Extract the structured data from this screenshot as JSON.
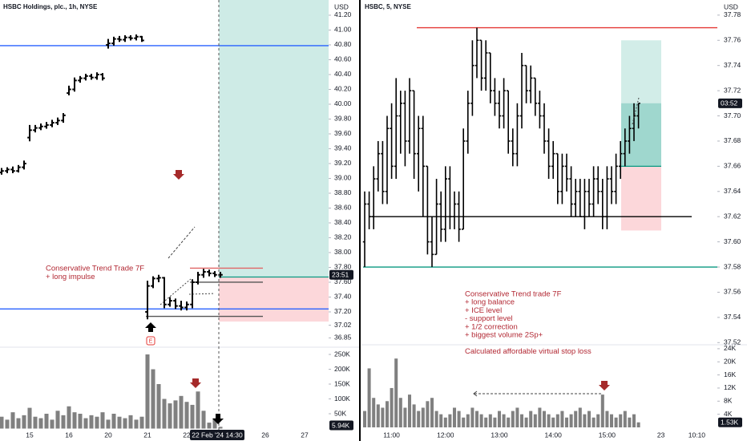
{
  "chart_data": [
    {
      "type": "ohlc",
      "title": "HSBC Holdings, plc., 1h, NYSE",
      "currency": "USD",
      "categories": [
        null,
        null,
        null,
        null,
        null,
        "15",
        null,
        null,
        null,
        null,
        null,
        null,
        "16",
        null,
        null,
        null,
        null,
        null,
        null,
        "20",
        null,
        null,
        null,
        null,
        null,
        null,
        "21",
        null,
        null,
        null,
        null,
        null,
        null,
        "22",
        null,
        null,
        null,
        null,
        null,
        null,
        null,
        null,
        null,
        null,
        null,
        null,
        null,
        "26",
        null,
        null,
        null,
        null,
        null,
        null,
        "27",
        null,
        null,
        null
      ],
      "open": [
        39.08,
        39.1,
        39.12,
        39.1,
        39.15,
        39.55,
        39.65,
        39.68,
        39.7,
        39.72,
        39.75,
        39.78,
        40.15,
        40.2,
        40.32,
        40.35,
        40.38,
        40.36,
        40.4,
        40.8,
        40.82,
        40.88,
        40.87,
        40.9,
        40.89,
        40.91,
        37.2,
        37.55,
        37.65,
        37.66,
        37.3,
        37.35,
        37.28,
        37.26,
        37.3,
        37.6,
        37.7,
        37.74,
        37.72,
        37.7,
        null,
        null,
        null,
        null,
        null,
        null,
        null,
        null,
        null,
        null,
        null,
        null,
        null,
        null,
        null,
        null,
        null,
        null
      ],
      "high": [
        39.14,
        39.15,
        39.16,
        39.18,
        39.24,
        39.72,
        39.72,
        39.74,
        39.76,
        39.79,
        39.82,
        39.88,
        40.25,
        40.36,
        40.38,
        40.41,
        40.41,
        40.43,
        40.42,
        40.88,
        40.91,
        40.92,
        40.93,
        40.93,
        40.94,
        40.92,
        37.62,
        37.68,
        37.7,
        37.67,
        37.4,
        37.38,
        37.35,
        37.34,
        37.64,
        37.74,
        37.78,
        37.77,
        37.75,
        37.74,
        null,
        null,
        null,
        null,
        null,
        null,
        null,
        null,
        null,
        null,
        null,
        null,
        null,
        null,
        null,
        null,
        null,
        null
      ],
      "low": [
        39.05,
        39.07,
        39.07,
        39.08,
        39.12,
        39.5,
        39.62,
        39.65,
        39.67,
        39.69,
        39.72,
        39.75,
        40.12,
        40.17,
        40.29,
        40.32,
        40.33,
        40.33,
        40.32,
        40.75,
        40.79,
        40.84,
        40.84,
        40.86,
        40.86,
        40.84,
        37.1,
        37.52,
        37.6,
        37.25,
        37.27,
        37.24,
        37.22,
        37.22,
        37.25,
        37.57,
        37.66,
        37.68,
        37.67,
        37.66,
        null,
        null,
        null,
        null,
        null,
        null,
        null,
        null,
        null,
        null,
        null,
        null,
        null,
        null,
        null,
        null,
        null,
        null
      ],
      "close": [
        39.1,
        39.12,
        39.1,
        39.15,
        39.2,
        39.65,
        39.68,
        39.7,
        39.72,
        39.75,
        39.78,
        39.85,
        40.2,
        40.32,
        40.35,
        40.38,
        40.36,
        40.4,
        40.35,
        40.82,
        40.88,
        40.87,
        40.9,
        40.89,
        40.91,
        40.86,
        37.55,
        37.65,
        37.66,
        37.3,
        37.35,
        37.28,
        37.26,
        37.3,
        37.6,
        37.7,
        37.74,
        37.72,
        37.7,
        37.7,
        null,
        null,
        null,
        null,
        null,
        null,
        null,
        null,
        null,
        null,
        null,
        null,
        null,
        null,
        null,
        null,
        null,
        null
      ],
      "volume": [
        40000,
        30000,
        55000,
        35000,
        45000,
        70000,
        40000,
        35000,
        50000,
        30000,
        60000,
        45000,
        75000,
        55000,
        50000,
        35000,
        45000,
        40000,
        55000,
        30000,
        50000,
        40000,
        35000,
        45000,
        30000,
        40000,
        250000,
        200000,
        150000,
        100000,
        85000,
        95000,
        110000,
        90000,
        80000,
        125000,
        60000,
        20000,
        35000,
        5940,
        null,
        null,
        null,
        null,
        null,
        null,
        null,
        null,
        null,
        null,
        null,
        null,
        null,
        null,
        null,
        null,
        null,
        null
      ],
      "bar_color": "#000000",
      "volume_color": "#808080",
      "ylim": [
        36.735,
        41.405
      ],
      "yticks": [
        {
          "value": 41.2,
          "label": "41.20"
        },
        {
          "value": 41,
          "label": "41.00"
        },
        {
          "value": 40.8,
          "label": "40.80"
        },
        {
          "value": 40.6,
          "label": "40.60"
        },
        {
          "value": 40.4,
          "label": "40.40"
        },
        {
          "value": 40.2,
          "label": "40.20"
        },
        {
          "value": 40,
          "label": "40.00"
        },
        {
          "value": 39.8,
          "label": "39.80"
        },
        {
          "value": 39.6,
          "label": "39.60"
        },
        {
          "value": 39.4,
          "label": "39.40"
        },
        {
          "value": 39.2,
          "label": "39.20"
        },
        {
          "value": 39,
          "label": "39.00"
        },
        {
          "value": 38.8,
          "label": "38.80"
        },
        {
          "value": 38.6,
          "label": "38.60"
        },
        {
          "value": 38.4,
          "label": "38.40"
        },
        {
          "value": 38.2,
          "label": "38.20"
        },
        {
          "value": 38,
          "label": "38.00"
        },
        {
          "value": 37.8,
          "label": "37.80"
        },
        {
          "value": 37.6,
          "label": "37.60"
        },
        {
          "value": 37.4,
          "label": "37.40"
        },
        {
          "value": 37.2,
          "label": "37.20"
        },
        37.02,
        36.85
      ],
      "vlim": [
        0,
        269000
      ],
      "vticks": [
        {
          "value": 250000,
          "label": "250K"
        },
        {
          "value": 200000,
          "label": "200K"
        },
        {
          "value": 150000,
          "label": "150K"
        },
        {
          "value": 100000,
          "label": "100K"
        },
        {
          "value": 50000,
          "label": "50K"
        }
      ],
      "levels": [
        {
          "value": 40.79,
          "color": "#2962ff"
        },
        {
          "value": 37.24,
          "color": "#2962ff"
        },
        {
          "value": 37.79,
          "color": "#e06666"
        },
        {
          "value": 37.6,
          "color": "#555555"
        },
        {
          "value": 37.14,
          "color": "#555555"
        }
      ],
      "position": {
        "entry": 37.67,
        "stop": 37.07
      },
      "annotations": [
        "Conservative Trend Trade 7F",
        "+ long impulse"
      ],
      "countdown": "23:51",
      "last_volume": {
        "value": 5940,
        "label": "5.94K"
      },
      "crosshair_label": "22 Feb '24 14:30"
    },
    {
      "type": "ohlc",
      "title": "HSBC, 5, NYSE",
      "currency": "USD",
      "categories": [
        null,
        null,
        null,
        null,
        null,
        null,
        "11:00",
        null,
        null,
        null,
        null,
        null,
        null,
        null,
        null,
        null,
        null,
        null,
        "12:00",
        null,
        null,
        null,
        null,
        null,
        null,
        null,
        null,
        null,
        null,
        null,
        "13:00",
        null,
        null,
        null,
        null,
        null,
        null,
        null,
        null,
        null,
        null,
        null,
        "14:00",
        null,
        null,
        null,
        null,
        null,
        null,
        null,
        null,
        null,
        null,
        null,
        "15:00",
        null,
        null,
        null,
        null,
        null,
        null,
        null,
        null,
        null,
        null,
        null,
        "23",
        null,
        null,
        null,
        null,
        null,
        null,
        null,
        "10:10",
        null
      ],
      "open": [
        37.6,
        37.63,
        37.62,
        37.65,
        37.67,
        37.64,
        37.69,
        37.66,
        37.7,
        37.71,
        37.68,
        37.72,
        37.67,
        37.69,
        37.66,
        37.6,
        37.59,
        37.63,
        37.61,
        37.65,
        37.62,
        37.63,
        37.61,
        37.68,
        37.71,
        37.74,
        37.76,
        37.73,
        37.75,
        37.72,
        37.71,
        37.7,
        37.72,
        37.68,
        37.67,
        37.7,
        37.74,
        37.72,
        37.73,
        37.71,
        37.7,
        37.68,
        37.66,
        37.67,
        37.64,
        37.66,
        37.65,
        37.63,
        37.64,
        37.62,
        37.64,
        37.63,
        37.65,
        37.64,
        37.62,
        37.65,
        37.64,
        37.66,
        37.67,
        37.68,
        37.69,
        37.7,
        null,
        null,
        null,
        null,
        null,
        null,
        null,
        null,
        null,
        null,
        null,
        null,
        null,
        null
      ],
      "high": [
        37.64,
        37.64,
        37.66,
        37.68,
        37.68,
        37.7,
        37.71,
        37.73,
        37.72,
        37.72,
        37.73,
        37.72,
        37.7,
        37.7,
        37.66,
        37.62,
        37.65,
        37.64,
        37.66,
        37.66,
        37.64,
        37.64,
        37.69,
        37.72,
        37.76,
        37.77,
        37.76,
        37.76,
        37.75,
        37.73,
        37.72,
        37.73,
        37.72,
        37.69,
        37.71,
        37.75,
        37.74,
        37.74,
        37.73,
        37.72,
        37.71,
        37.69,
        37.68,
        37.67,
        37.67,
        37.67,
        37.66,
        37.65,
        37.65,
        37.65,
        37.65,
        37.66,
        37.66,
        37.65,
        37.66,
        37.66,
        37.67,
        37.68,
        37.69,
        37.7,
        37.71,
        37.71,
        null,
        null,
        null,
        null,
        null,
        null,
        null,
        null,
        null,
        null,
        null,
        null,
        null,
        null
      ],
      "low": [
        37.58,
        37.61,
        37.61,
        37.64,
        37.63,
        37.63,
        37.65,
        37.65,
        37.67,
        37.66,
        37.67,
        37.65,
        37.64,
        37.62,
        37.59,
        37.58,
        37.59,
        37.6,
        37.6,
        37.61,
        37.61,
        37.6,
        37.61,
        37.67,
        37.7,
        37.73,
        37.72,
        37.72,
        37.71,
        37.7,
        37.69,
        37.69,
        37.67,
        37.66,
        37.66,
        37.69,
        37.71,
        37.71,
        37.7,
        37.69,
        37.67,
        37.65,
        37.65,
        37.63,
        37.63,
        37.64,
        37.62,
        37.62,
        37.62,
        37.61,
        37.62,
        37.62,
        37.63,
        37.61,
        37.61,
        37.63,
        37.63,
        37.65,
        37.66,
        37.67,
        37.68,
        37.69,
        null,
        null,
        null,
        null,
        null,
        null,
        null,
        null,
        null,
        null,
        null,
        null,
        null,
        null
      ],
      "close": [
        37.63,
        37.62,
        37.65,
        37.67,
        37.64,
        37.69,
        37.66,
        37.7,
        37.71,
        37.68,
        37.72,
        37.67,
        37.69,
        37.66,
        37.6,
        37.59,
        37.63,
        37.61,
        37.65,
        37.62,
        37.63,
        37.61,
        37.68,
        37.71,
        37.74,
        37.76,
        37.73,
        37.75,
        37.72,
        37.71,
        37.7,
        37.72,
        37.68,
        37.67,
        37.7,
        37.74,
        37.72,
        37.73,
        37.71,
        37.7,
        37.68,
        37.66,
        37.67,
        37.64,
        37.66,
        37.65,
        37.63,
        37.64,
        37.62,
        37.64,
        37.63,
        37.65,
        37.64,
        37.62,
        37.65,
        37.64,
        37.66,
        37.67,
        37.68,
        37.69,
        37.7,
        37.71,
        null,
        null,
        null,
        null,
        null,
        null,
        null,
        null,
        null,
        null,
        null,
        null,
        null,
        null
      ],
      "volume": [
        5000,
        18000,
        9000,
        7000,
        6000,
        8000,
        12000,
        21000,
        9000,
        6000,
        10000,
        7000,
        5000,
        6000,
        8000,
        9000,
        5000,
        4000,
        3000,
        4000,
        6000,
        5000,
        3000,
        4000,
        6000,
        5000,
        4000,
        3000,
        4000,
        3000,
        5000,
        4000,
        3000,
        5000,
        6000,
        4000,
        3000,
        5000,
        4000,
        6000,
        5000,
        4000,
        3000,
        4000,
        5000,
        3000,
        4000,
        5000,
        6000,
        4000,
        5000,
        3000,
        4000,
        10000,
        5000,
        4000,
        3000,
        4000,
        5000,
        3000,
        4000,
        1530,
        null,
        null,
        null,
        null,
        null,
        null,
        null,
        null,
        null,
        null,
        null,
        null,
        null,
        null
      ],
      "bar_color": "#000000",
      "volume_color": "#808080",
      "ylim": [
        37.517,
        37.792
      ],
      "yticks": [
        37.78,
        37.76,
        37.74,
        37.72,
        {
          "value": 37.7,
          "label": "37.70"
        },
        37.68,
        37.66,
        37.64,
        37.62,
        {
          "value": 37.6,
          "label": "37.60"
        },
        37.58,
        37.56,
        37.54,
        37.52
      ],
      "vlim": [
        0,
        25200
      ],
      "vticks": [
        {
          "value": 24000,
          "label": "24K"
        },
        {
          "value": 20000,
          "label": "20K"
        },
        {
          "value": 16000,
          "label": "16K"
        },
        {
          "value": 12000,
          "label": "12K"
        },
        {
          "value": 8000,
          "label": "8K"
        },
        {
          "value": 4000,
          "label": "4K"
        }
      ],
      "levels": [
        {
          "value": 37.77,
          "color": "#e53935"
        },
        {
          "value": 37.62,
          "color": "#000000"
        },
        {
          "value": 37.58,
          "color": "#089981"
        }
      ],
      "position": {
        "target": 37.76,
        "entry": 37.66,
        "stop": 37.609
      },
      "annotations": [
        "Conservative Trend trade 7F",
        "+ long balance",
        "+ ICE level",
        "- support level",
        "+ 1/2 correction",
        "+ biggest volume 2Sp+",
        "Calculated affordable virtual stop loss"
      ],
      "countdown": "03:52",
      "last_volume": {
        "value": 1530,
        "label": "1.53K"
      }
    }
  ]
}
